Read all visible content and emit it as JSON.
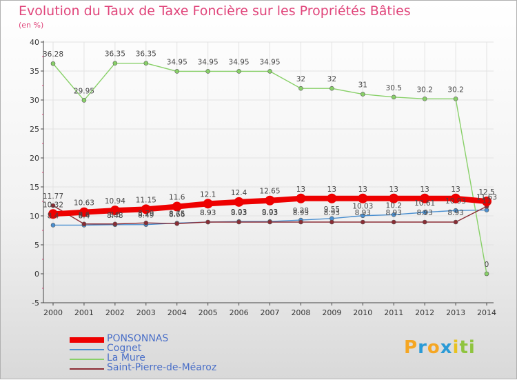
{
  "header": {
    "title": "Evolution du Taux de Taxe Foncière sur les Propriétés Bâties",
    "unit": "(en %)"
  },
  "logo": {
    "letters": [
      "P",
      "r",
      "o",
      "x",
      "i",
      "t",
      "i"
    ],
    "colors": [
      "#f5a623",
      "#2a9ad6",
      "#f5a623",
      "#2a9ad6",
      "#e8c21f",
      "#8fc43f",
      "#8fc43f"
    ]
  },
  "chart_data": {
    "type": "line",
    "title": "Evolution du Taux de Taxe Foncière sur les Propriétés Bâties",
    "ylabel": "(en %)",
    "xlabel": "",
    "ylim": [
      -5,
      40
    ],
    "yticks": [
      -5,
      0,
      5,
      10,
      15,
      20,
      25,
      30,
      35,
      40
    ],
    "ytick_labels": [
      "-5",
      "0",
      "5",
      "10",
      "15",
      "20",
      "25",
      "30",
      "35",
      "40"
    ],
    "categories": [
      "2000",
      "2001",
      "2002",
      "2003",
      "2004",
      "2005",
      "2006",
      "2007",
      "2008",
      "2009",
      "2010",
      "2011",
      "2012",
      "2013",
      "2014"
    ],
    "grid": true,
    "legend": "bottom-left",
    "series": [
      {
        "name": "PONSONNAS",
        "color": "#ee0000",
        "style": "thick",
        "values": [
          10.32,
          10.63,
          10.94,
          11.15,
          11.6,
          12.1,
          12.4,
          12.65,
          13,
          13,
          13,
          13,
          13,
          13,
          12.5
        ],
        "labels": [
          "10.32",
          "10.63",
          "10.94",
          "11.15",
          "11.6",
          "12.1",
          "12.4",
          "12.65",
          "13",
          "13",
          "13",
          "13",
          "13",
          "13",
          "12.5"
        ]
      },
      {
        "name": "Cognet",
        "color": "#4a8fd0",
        "style": "thin",
        "values": [
          8.4,
          8.4,
          8.48,
          8.49,
          8.75,
          8.93,
          9.03,
          9.03,
          9.28,
          9.55,
          10.03,
          10.2,
          10.61,
          10.93,
          11
        ],
        "labels": [
          "8.4",
          "8.4",
          "8.48",
          "8.49",
          "8.75",
          "8.93",
          "9.03",
          "9.03",
          "9.28",
          "9.55",
          "10.03",
          "10.2",
          "10.61",
          "10.93",
          "11"
        ]
      },
      {
        "name": "La Mure",
        "color": "#88d068",
        "style": "thin",
        "values": [
          36.28,
          29.95,
          36.35,
          36.35,
          34.95,
          34.95,
          34.95,
          34.95,
          32,
          32,
          31,
          30.5,
          30.2,
          30.2,
          0
        ],
        "labels": [
          "36.28",
          "29.95",
          "36.35",
          "36.35",
          "34.95",
          "34.95",
          "34.95",
          "34.95",
          "32",
          "32",
          "31",
          "30.5",
          "30.2",
          "30.2",
          "0"
        ]
      },
      {
        "name": "Saint-Pierre-de-Méaroz",
        "color": "#8b2c34",
        "style": "thin",
        "values": [
          11.77,
          8.6,
          8.6,
          8.79,
          8.66,
          8.93,
          8.93,
          8.93,
          8.93,
          8.93,
          8.93,
          8.93,
          8.93,
          8.93,
          11.63
        ],
        "labels": [
          "11.77",
          "8.6",
          "8.6",
          "8.79",
          "8.66",
          "8.93",
          "8.93",
          "8.93",
          "8.93",
          "8.93",
          "8.93",
          "8.93",
          "8.93",
          "8.93",
          "11.63"
        ]
      }
    ]
  }
}
